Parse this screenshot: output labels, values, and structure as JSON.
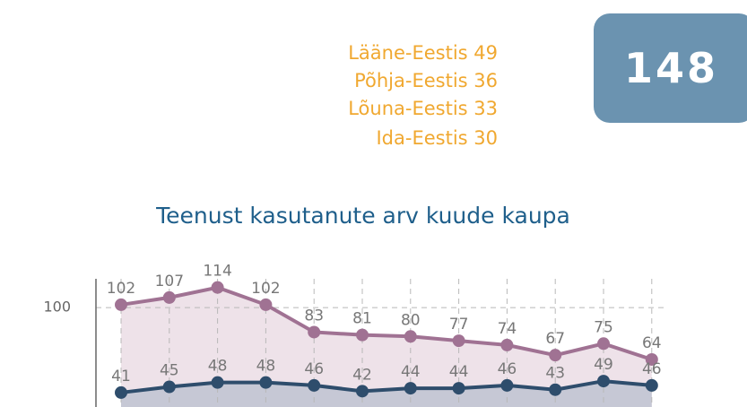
{
  "regions": [
    {
      "label": "Lääne-Eestis 49"
    },
    {
      "label": "Põhja-Eestis 36"
    },
    {
      "label": "Lõuna-Eestis 33"
    },
    {
      "label": "Ida-Eestis 30"
    }
  ],
  "total": {
    "value": "148"
  },
  "chart_data": {
    "type": "line",
    "title": "Teenust kasutanute arv kuude kaupa",
    "categories": [
      null,
      null,
      null,
      null,
      null,
      null,
      null,
      null,
      null,
      null,
      null,
      null
    ],
    "series": [
      {
        "color": "#a07293",
        "fill": "#eee2e9",
        "values": [
          102,
          107,
          114,
          102,
          83,
          81,
          80,
          77,
          74,
          67,
          75,
          64
        ]
      },
      {
        "color": "#2e4d6c",
        "fill": "#c6c8d5",
        "values": [
          41,
          45,
          48,
          48,
          46,
          42,
          44,
          44,
          46,
          43,
          49,
          46
        ]
      }
    ],
    "ylim": [
      31,
      120
    ],
    "yticks": [
      100
    ],
    "grid": true
  }
}
